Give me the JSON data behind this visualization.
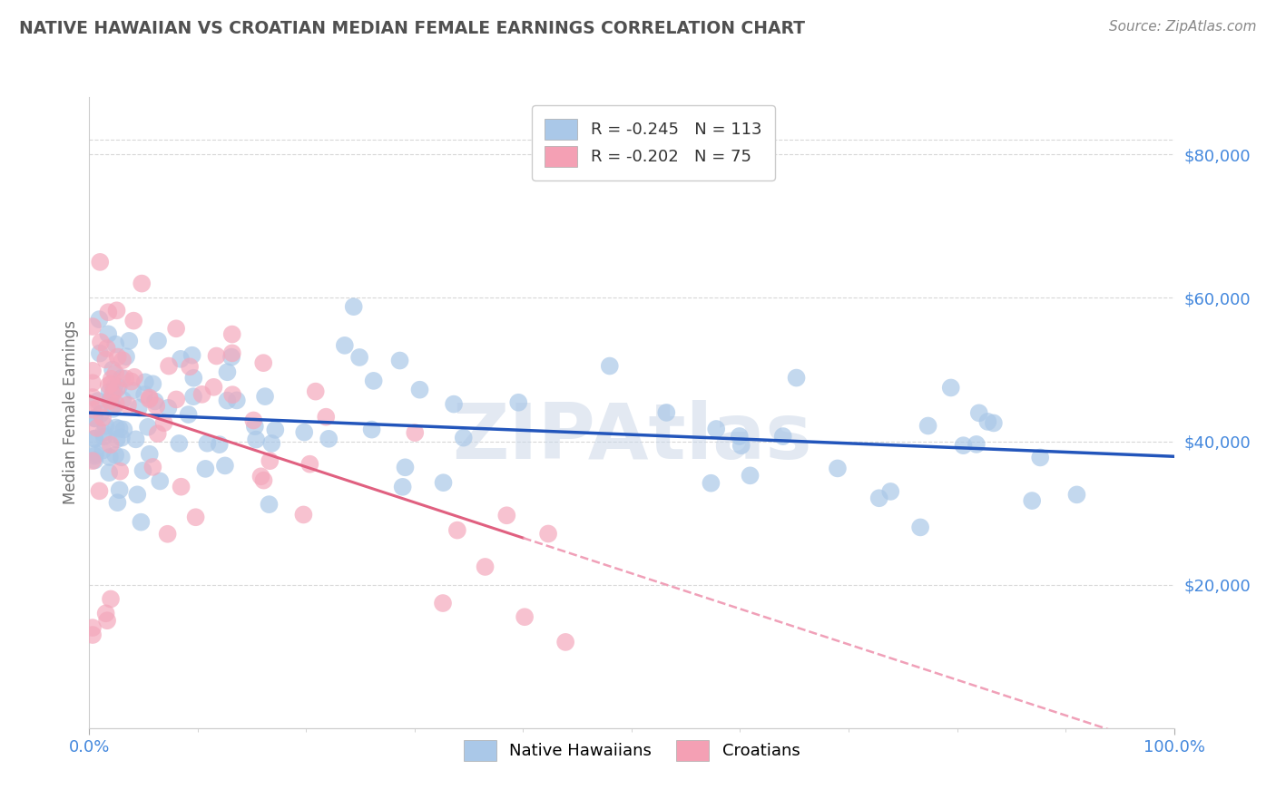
{
  "title": "NATIVE HAWAIIAN VS CROATIAN MEDIAN FEMALE EARNINGS CORRELATION CHART",
  "source": "Source: ZipAtlas.com",
  "ylabel": "Median Female Earnings",
  "y_ticks": [
    20000,
    40000,
    60000,
    80000
  ],
  "y_tick_labels": [
    "$20,000",
    "$40,000",
    "$60,000",
    "$80,000"
  ],
  "legend_bottom": [
    "Native Hawaiians",
    "Croatians"
  ],
  "nh_color": "#aac8e8",
  "cr_color": "#f4a8bc",
  "nh_line_color": "#2255bb",
  "cr_line_solid_color": "#e06080",
  "cr_line_dash_color": "#f0a0b8",
  "watermark": "ZIPAtlas",
  "r_nh": -0.245,
  "n_nh": 113,
  "r_cr": -0.202,
  "n_cr": 75,
  "background": "#ffffff",
  "grid_color": "#d8d8d8",
  "title_color": "#505050",
  "axis_label_color": "#4488dd",
  "legend_box_color": "#aac8e8",
  "legend_box_color2": "#f4a0b4",
  "r_value_color": "#e04060",
  "n_value_color": "#2255bb",
  "ylim_min": 0,
  "ylim_max": 88000,
  "xlim_min": 0,
  "xlim_max": 100
}
